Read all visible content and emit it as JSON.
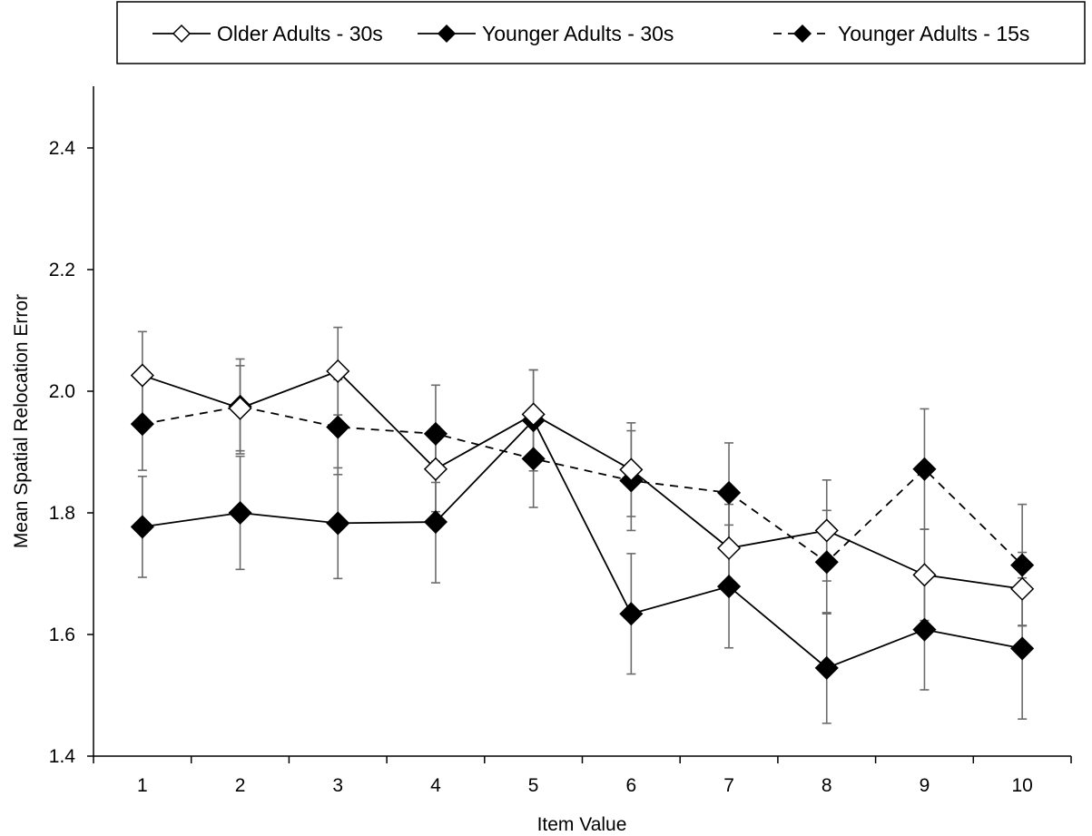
{
  "chart_data": {
    "type": "line",
    "title": "",
    "xlabel": "Item Value",
    "ylabel": "Mean Spatial Relocation Error",
    "x": [
      1,
      2,
      3,
      4,
      5,
      6,
      7,
      8,
      9,
      10
    ],
    "x_tick_labels": [
      "1",
      "2",
      "3",
      "4",
      "5",
      "6",
      "7",
      "8",
      "9",
      "10"
    ],
    "ylim": [
      1.4,
      2.5
    ],
    "y_ticks": [
      1.4,
      1.6,
      1.8,
      2.0,
      2.2,
      2.4
    ],
    "y_tick_labels": [
      "1.4",
      "1.6",
      "1.8",
      "2.0",
      "2.2",
      "2.4"
    ],
    "grid": false,
    "legend_position": "top",
    "series": [
      {
        "name": "Older Adults - 30s",
        "values": [
          2.026,
          1.972,
          2.033,
          1.872,
          1.962,
          1.871,
          1.742,
          1.771,
          1.698,
          1.675
        ],
        "error": [
          0.072,
          0.07,
          0.072,
          0.07,
          0.073,
          0.077,
          0.072,
          0.083,
          0.075,
          0.06
        ],
        "marker": "hollow-diamond",
        "line": "solid"
      },
      {
        "name": "Younger Adults - 30s",
        "values": [
          1.777,
          1.8,
          1.783,
          1.785,
          1.952,
          1.634,
          1.679,
          1.545,
          1.608,
          1.577
        ],
        "error": [
          0.083,
          0.093,
          0.091,
          0.1,
          0.083,
          0.099,
          0.101,
          0.091,
          0.099,
          0.116
        ],
        "marker": "filled-diamond",
        "line": "solid"
      },
      {
        "name": "Younger Adults - 15s",
        "values": [
          1.946,
          1.975,
          1.941,
          1.93,
          1.889,
          1.853,
          1.833,
          1.719,
          1.872,
          1.714
        ],
        "error": [
          0.076,
          0.078,
          0.078,
          0.08,
          0.08,
          0.082,
          0.082,
          0.085,
          0.099,
          0.1
        ],
        "marker": "filled-diamond",
        "line": "dashed"
      }
    ]
  }
}
